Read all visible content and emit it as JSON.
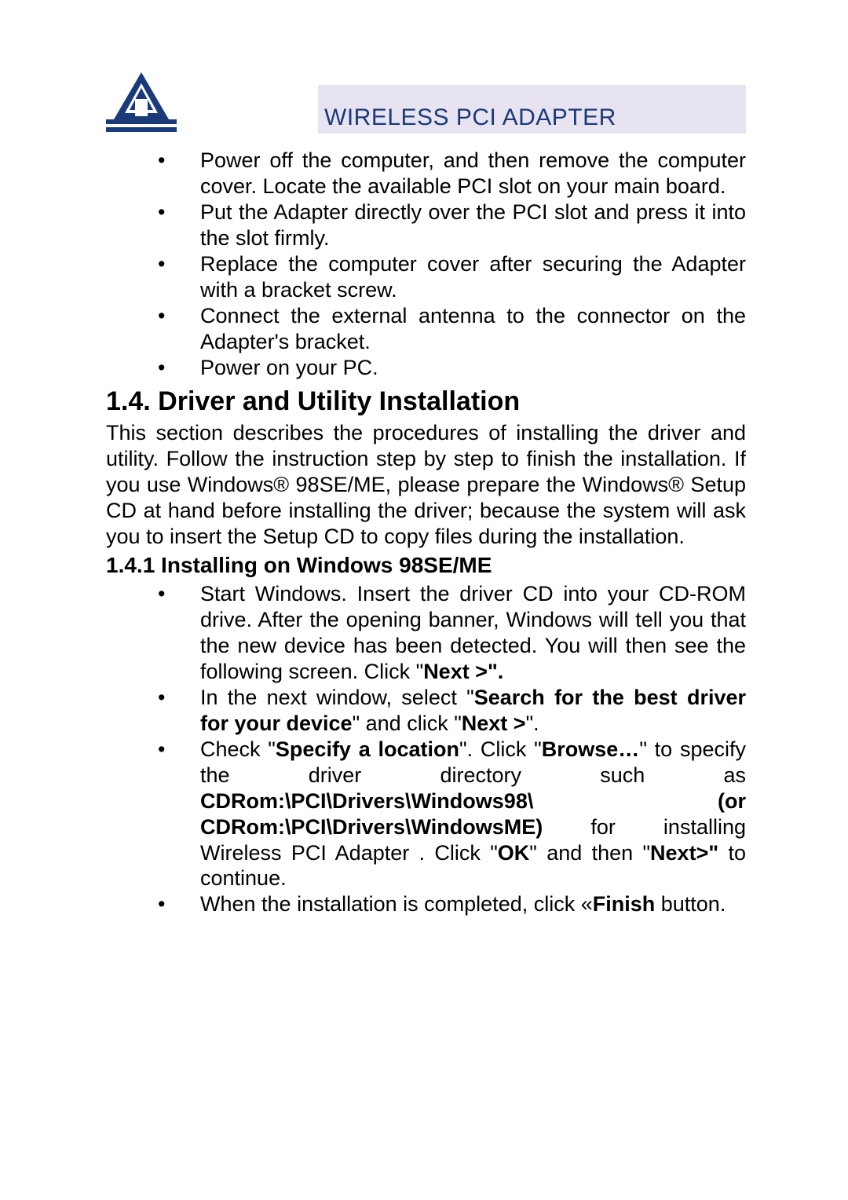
{
  "header": {
    "title": "WIRELESS PCI ADAPTER",
    "title_color": "#1a3a7a",
    "title_bg": "#e8e3f0",
    "title_fontsize": 30,
    "logo_color": "#1a3a7a"
  },
  "hardware_steps": [
    "Power off the computer, and then remove the computer cover.  Locate the available PCI slot on your main board.",
    "Put the Adapter directly over the PCI slot and press it into the slot firmly.",
    "Replace the computer cover after securing the Adapter with a bracket screw.",
    "Connect the external antenna to the connector on the Adapter's bracket.",
    "Power on your PC."
  ],
  "section_1_4": {
    "heading": "1.4. Driver and Utility  Installation",
    "paragraph": "This section describes the procedures of installing the driver and utility.  Follow the instruction step by step to finish the installation.  If you use Windows® 98SE/ME, please prepare the Windows® Setup CD at hand before installing the driver; because the system will ask you to insert the Setup CD to copy files during the installation."
  },
  "section_1_4_1": {
    "heading": "1.4.1 Installing on Windows 98SE/ME",
    "items": [
      {
        "segments": [
          {
            "t": "Start Windows. Insert the driver CD into your CD-ROM drive.   After the opening banner, Windows will tell you that the new device has been detected.  You will then see the following screen. Click \"",
            "b": false
          },
          {
            "t": "Next >\".",
            "b": true
          }
        ]
      },
      {
        "segments": [
          {
            "t": "In the next window, select \"",
            "b": false
          },
          {
            "t": "Search for the best driver for your device",
            "b": true
          },
          {
            "t": "\" and click \"",
            "b": false
          },
          {
            "t": "Next >",
            "b": true
          },
          {
            "t": "\".",
            "b": false
          }
        ]
      },
      {
        "segments": [
          {
            "t": "Check \"",
            "b": false
          },
          {
            "t": "Specify a location",
            "b": true
          },
          {
            "t": "\". Click \"",
            "b": false
          },
          {
            "t": "Browse…",
            "b": true
          },
          {
            "t": "\" to specify the driver directory such as ",
            "b": false
          },
          {
            "t": "CDRom:\\PCI\\Drivers\\Windows98\\ (or CDRom:\\PCI\\Drivers\\WindowsME) ",
            "b": true
          },
          {
            "t": "for installing Wireless PCI Adapter . Click \"",
            "b": false
          },
          {
            "t": "OK",
            "b": true
          },
          {
            "t": "\" and then \"",
            "b": false
          },
          {
            "t": "Next>\" ",
            "b": true
          },
          {
            "t": "to continue.",
            "b": false
          }
        ]
      },
      {
        "segments": [
          {
            "t": "When the installation is completed, click «",
            "b": false
          },
          {
            "t": "Finish ",
            "b": true
          },
          {
            "t": "button.",
            "b": false
          }
        ]
      }
    ]
  },
  "styles": {
    "body_fontsize": 27,
    "heading_fontsize": 34,
    "subheading_fontsize": 28,
    "text_color": "#000000",
    "bg_color": "#ffffff"
  }
}
